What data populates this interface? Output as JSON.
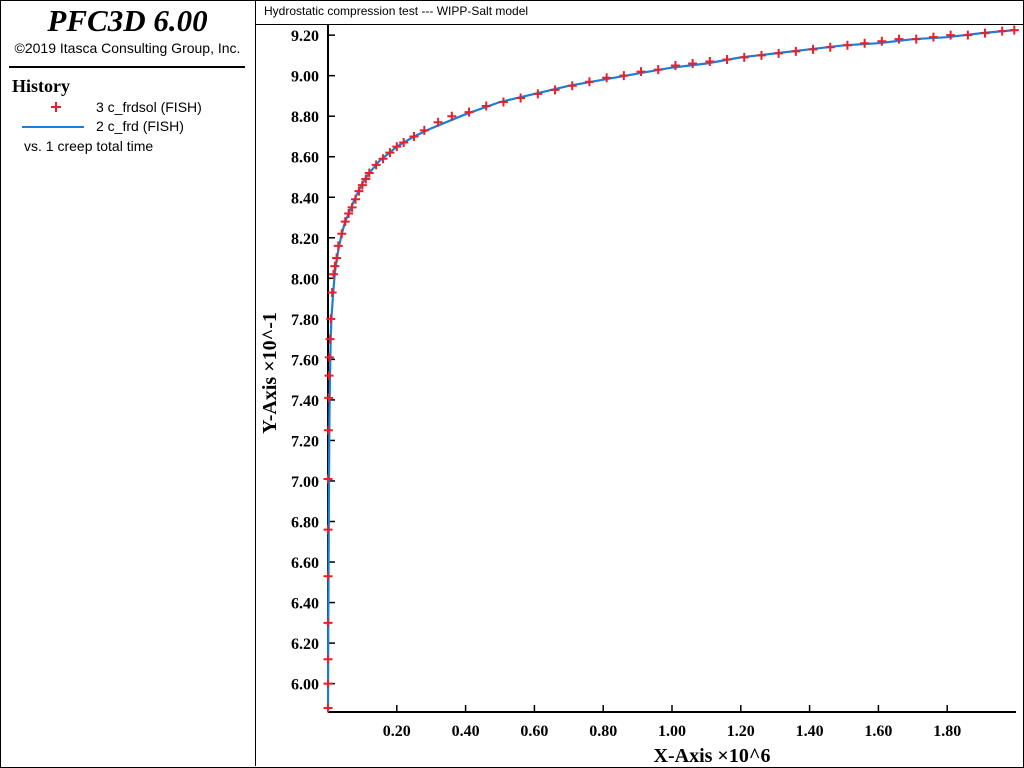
{
  "header": {
    "app_title": "PFC3D 6.00",
    "copyright": "©2019 Itasca Consulting Group, Inc."
  },
  "legend": {
    "heading": "History",
    "entries": [
      {
        "label": "3 c_frdsol (FISH)",
        "symbol": "plus-marker",
        "color": "#e8202a"
      },
      {
        "label": "2 c_frd (FISH)",
        "symbol": "line",
        "color": "#1a7fdc"
      }
    ],
    "vs_label": "vs. 1 creep total time"
  },
  "plot": {
    "title": "Hydrostatic compression test --- WIPP-Salt model"
  },
  "chart_data": {
    "type": "line",
    "title": "Hydrostatic compression test --- WIPP-Salt model",
    "xlabel": "X-Axis ×10^6",
    "ylabel": "Y-Axis ×10^-1",
    "xlim": [
      0,
      2.0
    ],
    "ylim": [
      5.86,
      9.25
    ],
    "x_ticks": [
      {
        "value": 0.2,
        "label": "0.20"
      },
      {
        "value": 0.4,
        "label": "0.40"
      },
      {
        "value": 0.6,
        "label": "0.60"
      },
      {
        "value": 0.8,
        "label": "0.80"
      },
      {
        "value": 1.0,
        "label": "1.00"
      },
      {
        "value": 1.2,
        "label": "1.20"
      },
      {
        "value": 1.4,
        "label": "1.40"
      },
      {
        "value": 1.6,
        "label": "1.60"
      },
      {
        "value": 1.8,
        "label": "1.80"
      }
    ],
    "y_ticks": [
      {
        "value": 6.0,
        "label": "6.00"
      },
      {
        "value": 6.2,
        "label": "6.20"
      },
      {
        "value": 6.4,
        "label": "6.40"
      },
      {
        "value": 6.6,
        "label": "6.60"
      },
      {
        "value": 6.8,
        "label": "6.80"
      },
      {
        "value": 7.0,
        "label": "7.00"
      },
      {
        "value": 7.2,
        "label": "7.20"
      },
      {
        "value": 7.4,
        "label": "7.40"
      },
      {
        "value": 7.6,
        "label": "7.60"
      },
      {
        "value": 7.8,
        "label": "7.80"
      },
      {
        "value": 8.0,
        "label": "8.00"
      },
      {
        "value": 8.2,
        "label": "8.20"
      },
      {
        "value": 8.4,
        "label": "8.40"
      },
      {
        "value": 8.6,
        "label": "8.60"
      },
      {
        "value": 8.8,
        "label": "8.80"
      },
      {
        "value": 9.0,
        "label": "9.00"
      },
      {
        "value": 9.2,
        "label": "9.20"
      }
    ],
    "grid": false,
    "legend_position": "left-panel",
    "series": [
      {
        "name": "2 c_frd (FISH)",
        "style": "line",
        "color": "#1a7fdc",
        "points": [
          [
            0.0,
            5.87
          ],
          [
            0.001,
            6.3
          ],
          [
            0.002,
            6.7
          ],
          [
            0.003,
            7.0
          ],
          [
            0.004,
            7.3
          ],
          [
            0.006,
            7.55
          ],
          [
            0.008,
            7.72
          ],
          [
            0.01,
            7.8
          ],
          [
            0.015,
            7.93
          ],
          [
            0.02,
            8.03
          ],
          [
            0.03,
            8.14
          ],
          [
            0.04,
            8.22
          ],
          [
            0.05,
            8.28
          ],
          [
            0.06,
            8.32
          ],
          [
            0.08,
            8.4
          ],
          [
            0.1,
            8.47
          ],
          [
            0.12,
            8.52
          ],
          [
            0.15,
            8.58
          ],
          [
            0.2,
            8.65
          ],
          [
            0.25,
            8.7
          ],
          [
            0.3,
            8.74
          ],
          [
            0.4,
            8.81
          ],
          [
            0.5,
            8.87
          ],
          [
            0.6,
            8.91
          ],
          [
            0.7,
            8.95
          ],
          [
            0.8,
            8.98
          ],
          [
            0.9,
            9.01
          ],
          [
            1.0,
            9.04
          ],
          [
            1.1,
            9.06
          ],
          [
            1.2,
            9.09
          ],
          [
            1.3,
            9.11
          ],
          [
            1.4,
            9.13
          ],
          [
            1.5,
            9.15
          ],
          [
            1.6,
            9.16
          ],
          [
            1.7,
            9.18
          ],
          [
            1.8,
            9.19
          ],
          [
            1.9,
            9.21
          ],
          [
            1.995,
            9.225
          ]
        ]
      },
      {
        "name": "3 c_frdsol (FISH)",
        "style": "plus-marker",
        "color": "#e8202a",
        "points": [
          [
            0.0,
            5.88
          ],
          [
            0.0,
            6.0
          ],
          [
            0.0,
            6.12
          ],
          [
            0.0,
            6.3
          ],
          [
            0.0,
            6.53
          ],
          [
            0.0,
            6.76
          ],
          [
            0.0,
            7.01
          ],
          [
            0.001,
            7.25
          ],
          [
            0.002,
            7.41
          ],
          [
            0.003,
            7.52
          ],
          [
            0.004,
            7.61
          ],
          [
            0.006,
            7.7
          ],
          [
            0.008,
            7.8
          ],
          [
            0.012,
            7.93
          ],
          [
            0.016,
            8.02
          ],
          [
            0.02,
            8.06
          ],
          [
            0.025,
            8.1
          ],
          [
            0.03,
            8.16
          ],
          [
            0.04,
            8.22
          ],
          [
            0.05,
            8.28
          ],
          [
            0.06,
            8.32
          ],
          [
            0.07,
            8.35
          ],
          [
            0.08,
            8.39
          ],
          [
            0.09,
            8.43
          ],
          [
            0.1,
            8.46
          ],
          [
            0.11,
            8.49
          ],
          [
            0.12,
            8.52
          ],
          [
            0.14,
            8.56
          ],
          [
            0.16,
            8.59
          ],
          [
            0.18,
            8.62
          ],
          [
            0.2,
            8.65
          ],
          [
            0.22,
            8.67
          ],
          [
            0.25,
            8.7
          ],
          [
            0.28,
            8.73
          ],
          [
            0.32,
            8.77
          ],
          [
            0.36,
            8.8
          ],
          [
            0.41,
            8.82
          ],
          [
            0.46,
            8.85
          ],
          [
            0.51,
            8.87
          ],
          [
            0.56,
            8.89
          ],
          [
            0.61,
            8.91
          ],
          [
            0.66,
            8.93
          ],
          [
            0.71,
            8.95
          ],
          [
            0.76,
            8.97
          ],
          [
            0.81,
            8.99
          ],
          [
            0.86,
            9.0
          ],
          [
            0.91,
            9.02
          ],
          [
            0.96,
            9.03
          ],
          [
            1.01,
            9.05
          ],
          [
            1.06,
            9.06
          ],
          [
            1.11,
            9.07
          ],
          [
            1.16,
            9.08
          ],
          [
            1.21,
            9.09
          ],
          [
            1.26,
            9.1
          ],
          [
            1.31,
            9.11
          ],
          [
            1.36,
            9.12
          ],
          [
            1.41,
            9.13
          ],
          [
            1.46,
            9.14
          ],
          [
            1.51,
            9.15
          ],
          [
            1.56,
            9.16
          ],
          [
            1.61,
            9.17
          ],
          [
            1.66,
            9.18
          ],
          [
            1.71,
            9.18
          ],
          [
            1.76,
            9.19
          ],
          [
            1.81,
            9.2
          ],
          [
            1.86,
            9.2
          ],
          [
            1.91,
            9.21
          ],
          [
            1.96,
            9.22
          ],
          [
            1.995,
            9.225
          ]
        ]
      }
    ]
  }
}
